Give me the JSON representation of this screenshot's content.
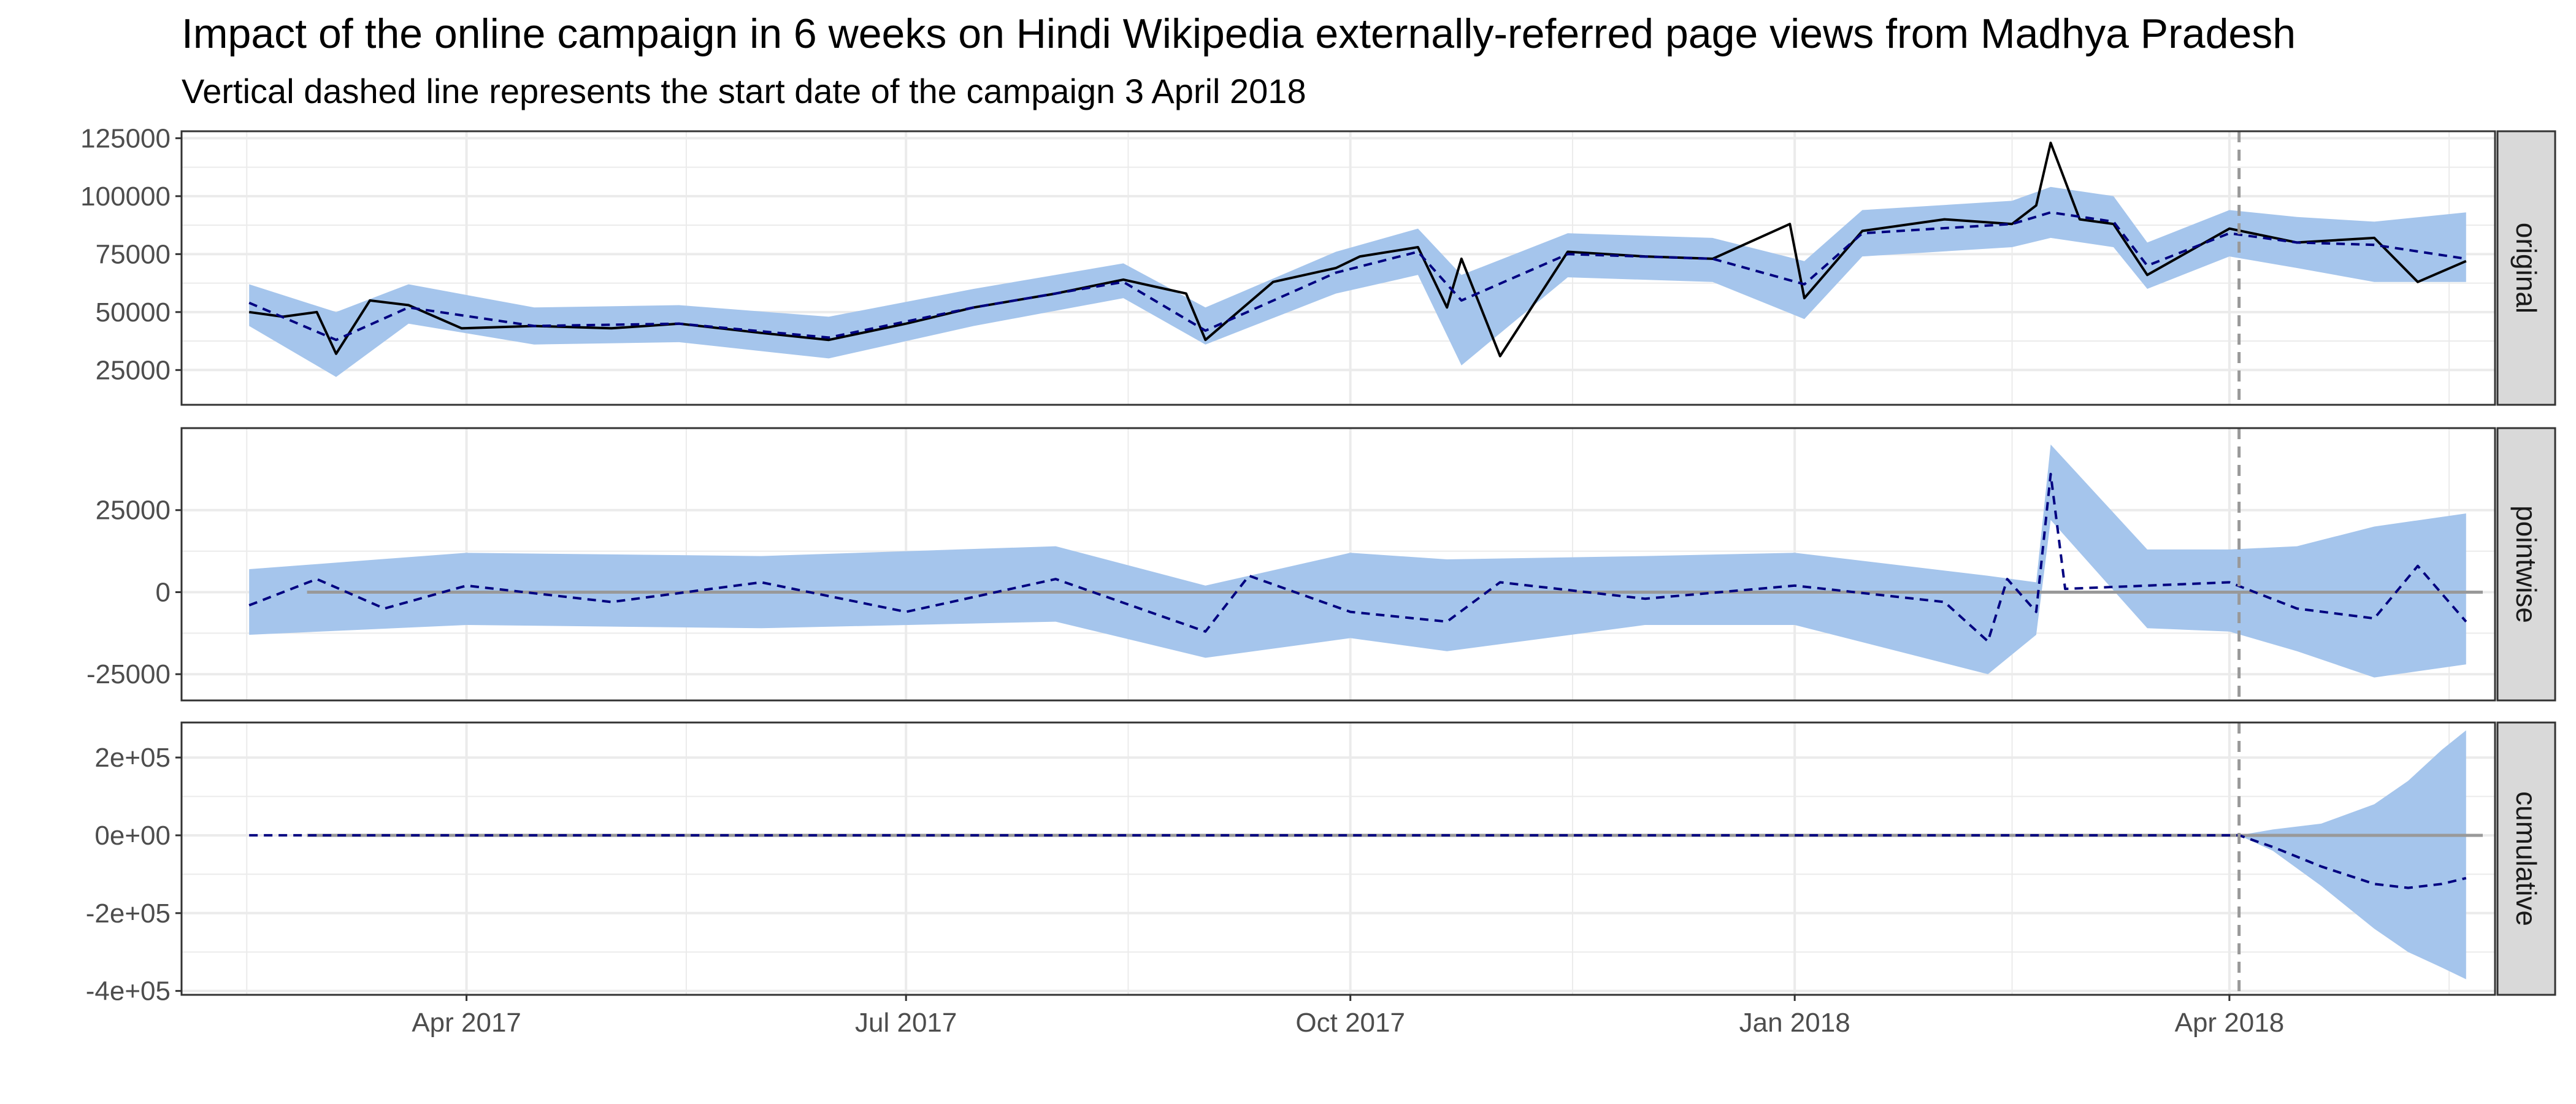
{
  "chart_data": {
    "type": "line",
    "title": "Impact of the online campaign in 6 weeks on Hindi Wikipedia externally-referred page views from Madhya Pradesh",
    "subtitle": "Vertical dashed line represents the start date of the campaign 3 April 2018",
    "x_range": [
      "2017-02-01",
      "2018-05-26"
    ],
    "campaign_start": "2018-04-03",
    "x_ticks": [
      {
        "date": "2017-04-01",
        "label": "Apr 2017"
      },
      {
        "date": "2017-07-01",
        "label": "Jul 2017"
      },
      {
        "date": "2017-10-01",
        "label": "Oct 2017"
      },
      {
        "date": "2018-01-01",
        "label": "Jan 2018"
      },
      {
        "date": "2018-04-01",
        "label": "Apr 2018"
      }
    ],
    "panels": [
      {
        "strip": "original",
        "ylim": [
          10000,
          128000
        ],
        "y_ticks": [
          {
            "value": 25000,
            "label": "25000"
          },
          {
            "value": 50000,
            "label": "50000"
          },
          {
            "value": 75000,
            "label": "75000"
          },
          {
            "value": 100000,
            "label": "100000"
          },
          {
            "value": 125000,
            "label": "125000"
          }
        ],
        "series": [
          {
            "role": "observed",
            "style": "solid",
            "color": "#000000",
            "x": [
              "2017-02-15",
              "2017-02-22",
              "2017-03-01",
              "2017-03-05",
              "2017-03-12",
              "2017-03-20",
              "2017-03-31",
              "2017-04-15",
              "2017-05-01",
              "2017-05-15",
              "2017-06-01",
              "2017-06-15",
              "2017-07-01",
              "2017-07-15",
              "2017-08-01",
              "2017-08-15",
              "2017-08-28",
              "2017-09-01",
              "2017-09-15",
              "2017-09-28",
              "2017-10-03",
              "2017-10-15",
              "2017-10-21",
              "2017-10-24",
              "2017-11-01",
              "2017-11-15",
              "2017-12-01",
              "2017-12-15",
              "2017-12-31",
              "2018-01-03",
              "2018-01-15",
              "2018-02-01",
              "2018-02-15",
              "2018-02-20",
              "2018-02-23",
              "2018-03-01",
              "2018-03-08",
              "2018-03-15",
              "2018-04-01",
              "2018-04-15",
              "2018-05-01",
              "2018-05-10",
              "2018-05-20"
            ],
            "y": [
              50000,
              48000,
              50000,
              32000,
              55000,
              53000,
              43000,
              44000,
              43000,
              45000,
              41000,
              38000,
              45000,
              52000,
              58000,
              64000,
              58000,
              38000,
              63000,
              69000,
              74000,
              78000,
              52000,
              73000,
              31000,
              76000,
              74000,
              73000,
              88000,
              56000,
              85000,
              90000,
              88000,
              96000,
              123000,
              90000,
              88000,
              66000,
              86000,
              80000,
              82000,
              63000,
              72000
            ]
          },
          {
            "role": "predicted",
            "style": "dashed",
            "color": "#000080",
            "x": [
              "2017-02-15",
              "2017-03-05",
              "2017-03-20",
              "2017-04-15",
              "2017-05-15",
              "2017-06-15",
              "2017-07-15",
              "2017-08-15",
              "2017-09-01",
              "2017-09-28",
              "2017-10-15",
              "2017-10-24",
              "2017-11-15",
              "2017-12-15",
              "2018-01-03",
              "2018-01-15",
              "2018-02-15",
              "2018-02-23",
              "2018-03-08",
              "2018-03-15",
              "2018-04-01",
              "2018-04-15",
              "2018-05-01",
              "2018-05-20"
            ],
            "y": [
              54000,
              38000,
              52000,
              44000,
              45000,
              39000,
              52000,
              63000,
              42000,
              67000,
              76000,
              55000,
              75000,
              73000,
              62000,
              84000,
              88000,
              93000,
              89000,
              70000,
              84000,
              80000,
              79000,
              73000
            ]
          }
        ],
        "bands": [
          {
            "color": "#a5c5ec",
            "x": [
              "2017-02-15",
              "2017-03-05",
              "2017-03-20",
              "2017-04-15",
              "2017-05-15",
              "2017-06-15",
              "2017-07-15",
              "2017-08-15",
              "2017-09-01",
              "2017-09-28",
              "2017-10-15",
              "2017-10-24",
              "2017-11-15",
              "2017-12-15",
              "2018-01-03",
              "2018-01-15",
              "2018-02-15",
              "2018-02-23",
              "2018-03-08",
              "2018-03-15",
              "2018-04-01",
              "2018-04-15",
              "2018-05-01",
              "2018-05-20"
            ],
            "lower": [
              44000,
              22000,
              45000,
              36000,
              37000,
              30000,
              44000,
              56000,
              36000,
              58000,
              66000,
              27000,
              65000,
              63000,
              47000,
              74000,
              78000,
              82000,
              78000,
              60000,
              74000,
              69000,
              63000,
              63000
            ],
            "upper": [
              62000,
              50000,
              62000,
              52000,
              53000,
              48000,
              60000,
              71000,
              52000,
              76000,
              86000,
              66000,
              84000,
              82000,
              72000,
              94000,
              98000,
              104000,
              100000,
              80000,
              94000,
              91000,
              89000,
              93000
            ]
          }
        ]
      },
      {
        "strip": "pointwise",
        "ylim": [
          -33000,
          50000
        ],
        "y_ticks": [
          {
            "value": -25000,
            "label": "-25000"
          },
          {
            "value": 0,
            "label": "0"
          },
          {
            "value": 25000,
            "label": "25000"
          }
        ],
        "reference_line": 0,
        "series": [
          {
            "role": "effect",
            "style": "dashed",
            "color": "#000080",
            "x": [
              "2017-02-15",
              "2017-03-01",
              "2017-03-15",
              "2017-04-01",
              "2017-05-01",
              "2017-06-01",
              "2017-07-01",
              "2017-08-01",
              "2017-09-01",
              "2017-09-10",
              "2017-10-01",
              "2017-10-21",
              "2017-11-01",
              "2017-12-01",
              "2018-01-01",
              "2018-02-01",
              "2018-02-10",
              "2018-02-14",
              "2018-02-20",
              "2018-02-23",
              "2018-02-26",
              "2018-03-15",
              "2018-04-01",
              "2018-04-15",
              "2018-05-01",
              "2018-05-10",
              "2018-05-20"
            ],
            "y": [
              -4000,
              4000,
              -5000,
              2000,
              -3000,
              3000,
              -6000,
              4000,
              -12000,
              5000,
              -6000,
              -9000,
              3000,
              -2000,
              2000,
              -3000,
              -15000,
              4000,
              -6000,
              36000,
              1000,
              2000,
              3000,
              -5000,
              -8000,
              8000,
              -9000
            ]
          }
        ],
        "bands": [
          {
            "color": "#a5c5ec",
            "x": [
              "2017-02-15",
              "2017-04-01",
              "2017-06-01",
              "2017-08-01",
              "2017-09-01",
              "2017-10-01",
              "2017-10-21",
              "2017-12-01",
              "2018-01-01",
              "2018-02-10",
              "2018-02-20",
              "2018-02-23",
              "2018-03-15",
              "2018-04-01",
              "2018-04-15",
              "2018-05-01",
              "2018-05-20"
            ],
            "lower": [
              -13000,
              -10000,
              -11000,
              -9000,
              -20000,
              -14000,
              -18000,
              -10000,
              -10000,
              -25000,
              -13000,
              22000,
              -11000,
              -12000,
              -18000,
              -26000,
              -22000
            ],
            "upper": [
              7000,
              12000,
              11000,
              14000,
              2000,
              12000,
              10000,
              11000,
              12000,
              5000,
              3000,
              45000,
              13000,
              13000,
              14000,
              20000,
              24000
            ]
          }
        ]
      },
      {
        "strip": "cumulative",
        "ylim": [
          -410000,
          290000
        ],
        "y_ticks": [
          {
            "value": -400000,
            "label": "-4e+05"
          },
          {
            "value": -200000,
            "label": "-2e+05"
          },
          {
            "value": 0,
            "label": "0e+00"
          },
          {
            "value": 200000,
            "label": "2e+05"
          }
        ],
        "reference_line": 0,
        "series": [
          {
            "role": "cumulative_effect",
            "style": "dashed",
            "color": "#000080",
            "x": [
              "2017-02-15",
              "2018-04-03",
              "2018-04-10",
              "2018-04-20",
              "2018-05-01",
              "2018-05-08",
              "2018-05-15",
              "2018-05-20"
            ],
            "y": [
              0,
              0,
              -30000,
              -80000,
              -125000,
              -135000,
              -125000,
              -110000
            ]
          }
        ],
        "bands": [
          {
            "color": "#a5c5ec",
            "x": [
              "2018-04-03",
              "2018-04-10",
              "2018-04-20",
              "2018-05-01",
              "2018-05-08",
              "2018-05-15",
              "2018-05-20"
            ],
            "lower": [
              0,
              -40000,
              -130000,
              -240000,
              -300000,
              -340000,
              -370000
            ],
            "upper": [
              0,
              15000,
              30000,
              80000,
              140000,
              220000,
              270000
            ]
          }
        ]
      }
    ],
    "grid": true,
    "grid_color": "#ebebeb",
    "panel_border_color": "#333333",
    "strip_fill": "#d9d9d9",
    "campaign_line_color": "#999999",
    "reference_line_color": "#999999"
  }
}
